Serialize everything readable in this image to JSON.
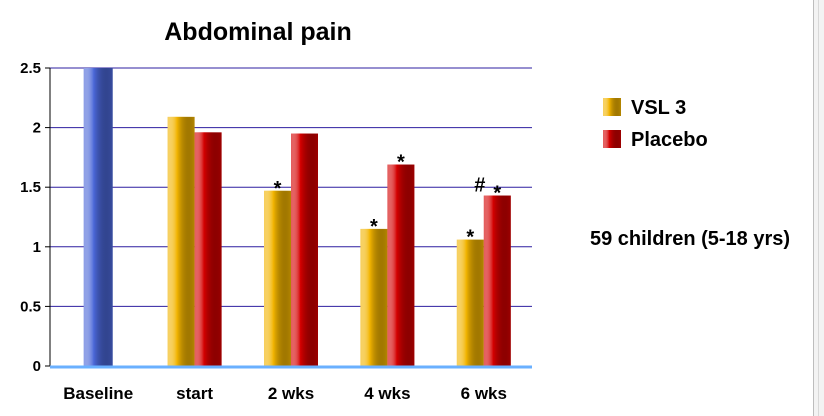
{
  "chart_data": {
    "type": "bar",
    "title": "Abdominal pain",
    "categories": [
      "Baseline",
      "start",
      "2 wks",
      "4 wks",
      "6 wks"
    ],
    "baseline": {
      "category": "Baseline",
      "value": 2.5,
      "color": "#4b67d8"
    },
    "series": [
      {
        "name": "VSL 3",
        "color": "#f2b400",
        "values": [
          null,
          2.09,
          1.47,
          1.15,
          1.06
        ]
      },
      {
        "name": "Placebo",
        "color": "#d40000",
        "values": [
          null,
          1.96,
          1.95,
          1.69,
          1.43
        ]
      }
    ],
    "annotations": [
      {
        "category": "2 wks",
        "series": "VSL 3",
        "text": "*"
      },
      {
        "category": "4 wks",
        "series": "VSL 3",
        "text": "*"
      },
      {
        "category": "4 wks",
        "series": "Placebo",
        "text": "*"
      },
      {
        "category": "6 wks",
        "series": "VSL 3",
        "text": "*"
      },
      {
        "category": "6 wks",
        "series": "Placebo",
        "text": "*"
      },
      {
        "category": "6 wks",
        "series": "between",
        "text": "#"
      }
    ],
    "yticks": [
      "0",
      "0.5",
      "1",
      "1.5",
      "2",
      "2.5"
    ],
    "ylim": [
      0,
      2.5
    ],
    "grid": true,
    "gridColor": "#2e1fa0",
    "legend_position": "right",
    "note": "59 children (5-18 yrs)"
  }
}
